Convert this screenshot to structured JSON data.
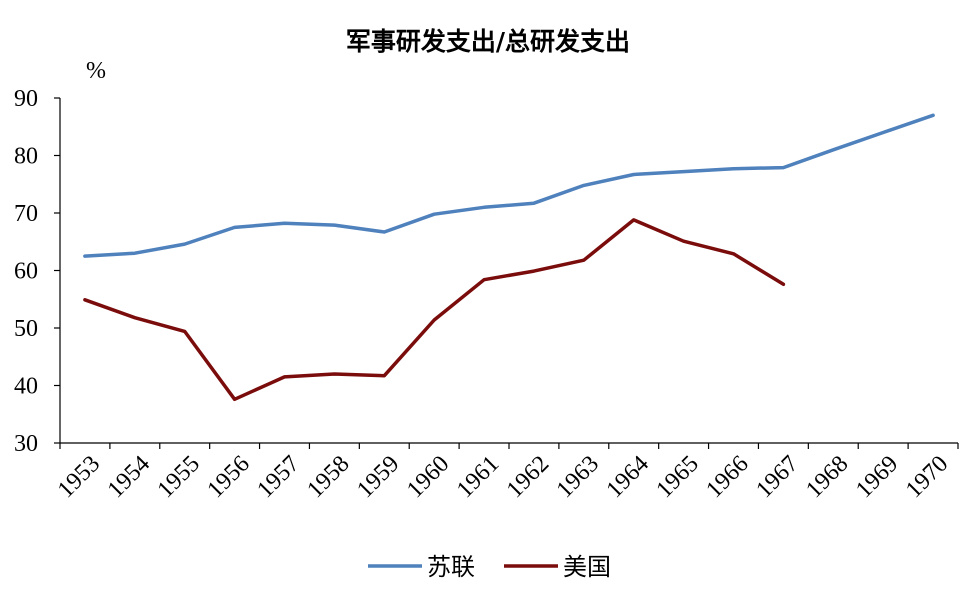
{
  "chart_data": {
    "type": "line",
    "title": "军事研发支出/总研发支出",
    "ylabel": "%",
    "xlabel": "",
    "ylim": [
      30,
      90
    ],
    "yticks": [
      30,
      40,
      50,
      60,
      70,
      80,
      90
    ],
    "categories": [
      "1953",
      "1954",
      "1955",
      "1956",
      "1957",
      "1958",
      "1959",
      "1960",
      "1961",
      "1962",
      "1963",
      "1964",
      "1965",
      "1966",
      "1967",
      "1968",
      "1969",
      "1970"
    ],
    "grid": false,
    "legend_position": "bottom",
    "series": [
      {
        "name": "苏联",
        "color": "#4f81bd",
        "values": [
          62.5,
          63.0,
          64.6,
          67.5,
          68.2,
          67.9,
          66.7,
          69.8,
          71.0,
          71.7,
          74.8,
          76.7,
          77.2,
          77.7,
          77.9,
          81.0,
          84.0,
          87.0
        ]
      },
      {
        "name": "美国",
        "color": "#7b0c0c",
        "values": [
          54.9,
          51.8,
          49.4,
          37.6,
          41.5,
          42.0,
          41.7,
          51.4,
          58.4,
          59.9,
          61.8,
          68.8,
          65.1,
          62.9,
          57.6,
          null,
          null,
          null
        ]
      }
    ]
  }
}
